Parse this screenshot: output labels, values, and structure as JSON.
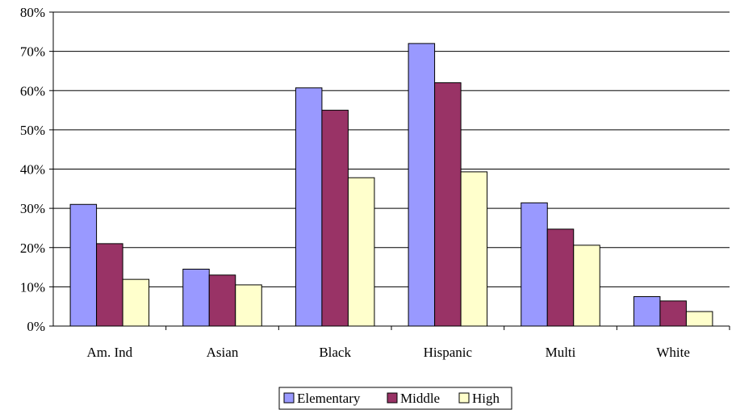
{
  "chart_data": {
    "type": "bar",
    "title": "",
    "xlabel": "",
    "ylabel": "",
    "categories": [
      "Am. Ind",
      "Asian",
      "Black",
      "Hispanic",
      "Multi",
      "White"
    ],
    "series": [
      {
        "name": "Elementary",
        "values": [
          31,
          14.5,
          60.7,
          72,
          31.4,
          7.5
        ],
        "color": "#9999ff"
      },
      {
        "name": "Middle",
        "values": [
          21,
          13,
          55,
          62,
          24.7,
          6.4
        ],
        "color": "#993366"
      },
      {
        "name": "High",
        "values": [
          11.9,
          10.5,
          37.8,
          39.3,
          20.6,
          3.7
        ],
        "color": "#ffffcc"
      }
    ],
    "ylim": [
      0,
      80
    ],
    "yticks": [
      0,
      10,
      20,
      30,
      40,
      50,
      60,
      70,
      80
    ],
    "ytick_labels": [
      "0%",
      "10%",
      "20%",
      "30%",
      "40%",
      "50%",
      "60%",
      "70%",
      "80%"
    ],
    "grid": true,
    "legend_position": "bottom"
  }
}
